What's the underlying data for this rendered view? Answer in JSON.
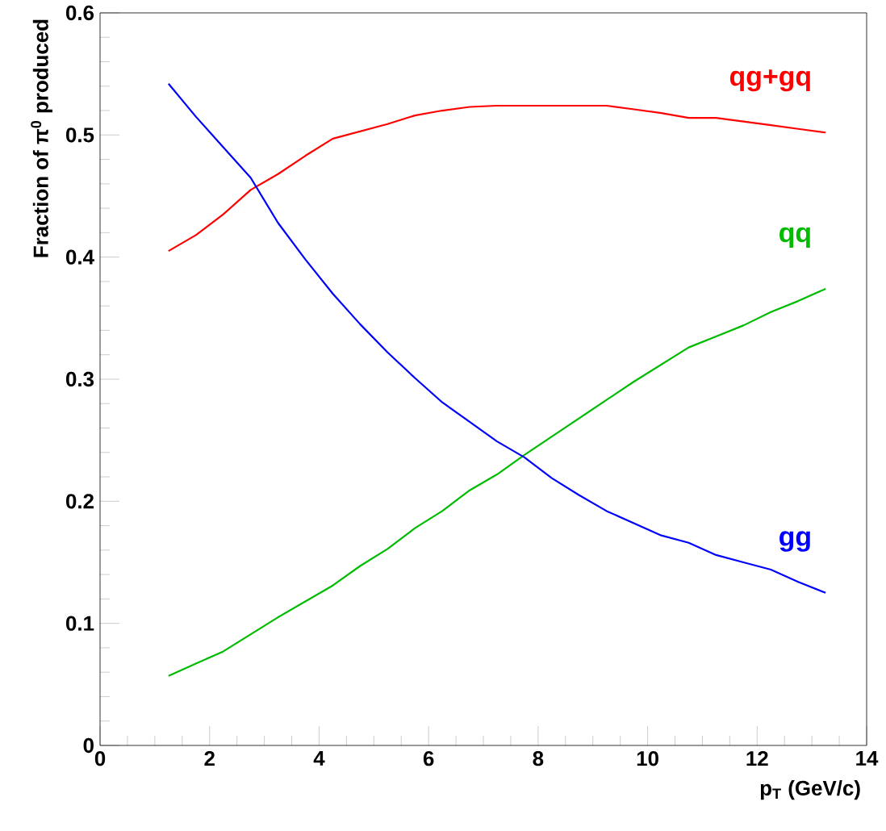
{
  "chart_data": {
    "type": "line",
    "xlabel": "p$_{T}$ (GeV/c)",
    "ylabel": "Fraction of π$^{0}$ produced",
    "x": [
      1.25,
      1.75,
      2.25,
      2.75,
      3.25,
      3.75,
      4.25,
      4.75,
      5.25,
      5.75,
      6.25,
      6.75,
      7.25,
      7.75,
      8.25,
      8.75,
      9.25,
      9.75,
      10.25,
      10.75,
      11.25,
      11.75,
      12.25,
      12.75,
      13.25
    ],
    "series": [
      {
        "name": "qg+gq",
        "color": "#ff0000",
        "values": [
          0.405,
          0.418,
          0.435,
          0.455,
          0.468,
          0.483,
          0.497,
          0.503,
          0.509,
          0.516,
          0.52,
          0.523,
          0.524,
          0.524,
          0.524,
          0.524,
          0.524,
          0.521,
          0.518,
          0.514,
          0.514,
          0.511,
          0.508,
          0.505,
          0.502
        ]
      },
      {
        "name": "qq",
        "color": "#00bb00",
        "values": [
          0.057,
          0.067,
          0.077,
          0.091,
          0.105,
          0.118,
          0.131,
          0.147,
          0.161,
          0.178,
          0.192,
          0.209,
          0.222,
          0.238,
          0.253,
          0.268,
          0.283,
          0.298,
          0.312,
          0.326,
          0.335,
          0.344,
          0.355,
          0.364,
          0.374
        ]
      },
      {
        "name": "gg",
        "color": "#0000ff",
        "values": [
          0.542,
          0.515,
          0.49,
          0.465,
          0.428,
          0.398,
          0.37,
          0.345,
          0.322,
          0.301,
          0.281,
          0.265,
          0.249,
          0.236,
          0.219,
          0.205,
          0.192,
          0.182,
          0.172,
          0.166,
          0.156,
          0.15,
          0.144,
          0.134,
          0.125
        ]
      }
    ],
    "xlim": [
      0,
      14
    ],
    "ylim": [
      0,
      0.6
    ],
    "xticks": [
      0,
      2,
      4,
      6,
      8,
      10,
      12,
      14
    ],
    "yticks": [
      0,
      0.1,
      0.2,
      0.3,
      0.4,
      0.5,
      0.6
    ],
    "grid": false,
    "legend": false,
    "marker": "none",
    "line_style": "solid"
  }
}
